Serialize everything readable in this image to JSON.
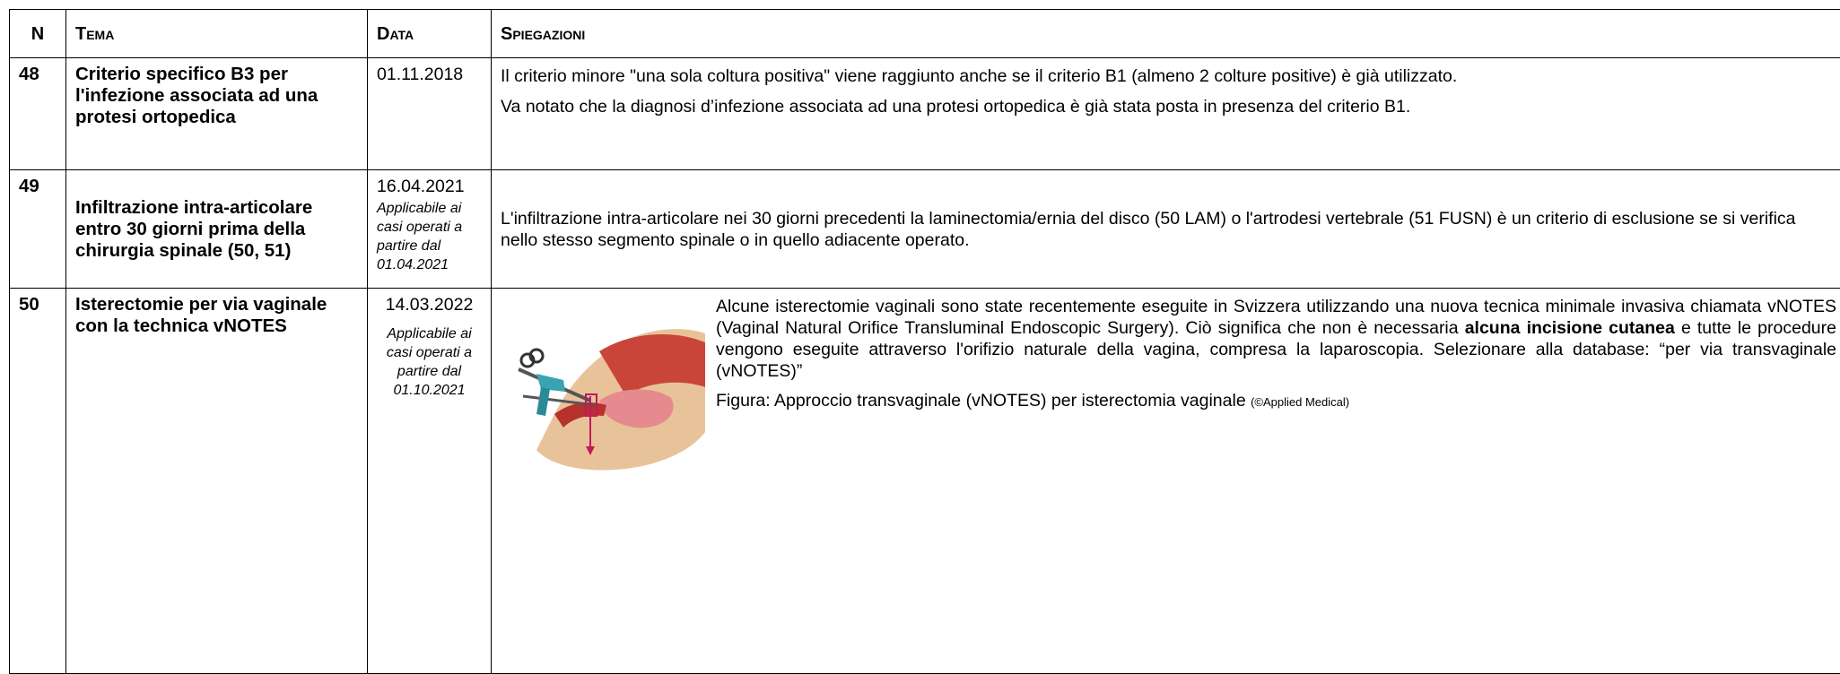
{
  "table": {
    "header": [
      "N",
      "Tema",
      "Data",
      "Spiegazioni"
    ],
    "rows": [
      {
        "n": "48",
        "tema": "Criterio specifico B3 per l'infezione associata ad una protesi ortopedica",
        "data": "01.11.2018",
        "paragraphs": [
          [
            {
              "text": "Il criterio minore \"una sola coltura positiva\" viene raggiunto anche se il criterio B1 (almeno 2 colture positive) è già utilizzato."
            }
          ],
          [
            {
              "text": "Va notato che la diagnosi d’infezione associata ad una protesi ortopedica è già stata posta in presenza del criterio B1."
            }
          ]
        ]
      },
      {
        "n": "49",
        "tema": "Infiltrazione intra-articolare entro 30 giorni prima della chirurgia spinale (50, 51)",
        "data": "16.04.2021",
        "note": "Applicabile ai casi operati a partire dal 01.04.2021",
        "paragraphs": [
          [
            {
              "text": "L'infiltrazione intra-articolare nei 30 giorni precedenti la laminectomia/ernia del disco (50 LAM) o l'artrodesi vertebrale (51 FUSN) è un criterio di esclusione se si verifica nello stesso segmento spinale o in quello adiacente operato."
            }
          ]
        ]
      },
      {
        "n": "50",
        "tema": "Isterectomie per via vaginale con la technica vNOTES",
        "data": "14.03.2022",
        "note": "Applicabile ai casi operati a partire dal 01.10.2021",
        "paragraphs": [
          [
            {
              "text": "Alcune isterectomie vaginali sono state recentemente eseguite in Svizzera utilizzando una nuova tecnica minimale invasiva chiamata vNOTES (Vaginal Natural Orifice Transluminal Endoscopic Surgery). Ciò significa che non è necessaria "
            },
            {
              "text": "alcuna incisione cutanea",
              "bold": true
            },
            {
              "text": " e tutte le procedure vengono eseguite attraverso l'orifizio naturale della vagina, compresa la laparoscopia. Selezionare alla database: “per via transvaginale (vNOTES)”"
            }
          ],
          [
            {
              "text": "Figura: Approccio transvaginale (vNOTES) per isterectomia vaginale "
            },
            {
              "text": "(©Applied Medical)",
              "small": true
            }
          ]
        ]
      }
    ]
  }
}
